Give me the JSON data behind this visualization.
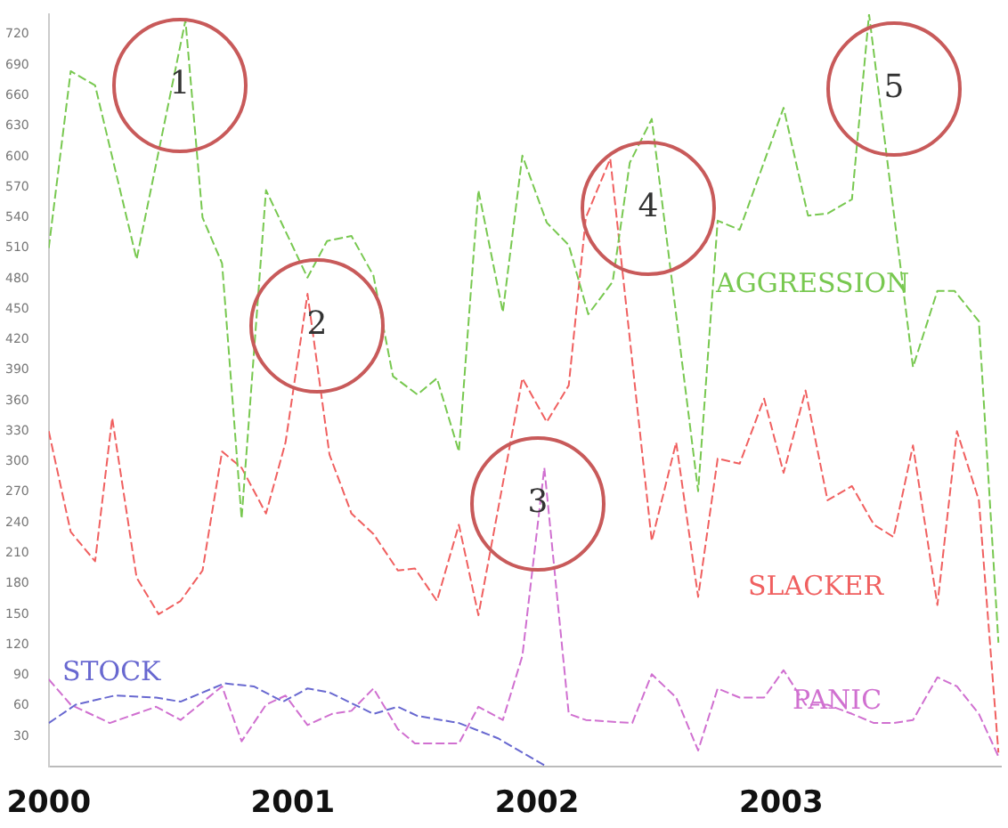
{
  "chart_data": {
    "type": "line",
    "xlim": [
      2000,
      2003.9
    ],
    "xticks": [
      2000,
      2001,
      2002,
      2003
    ],
    "ylim": [
      0,
      740
    ],
    "yticks": [
      30,
      60,
      90,
      120,
      150,
      180,
      210,
      240,
      270,
      300,
      330,
      360,
      390,
      420,
      450,
      480,
      510,
      540,
      570,
      600,
      630,
      660,
      690,
      720
    ],
    "grid": false,
    "legend": false,
    "marker": "none",
    "line_style": "dashed",
    "series": [
      {
        "name": "AGGRESSION",
        "color": "#78c850",
        "x": [
          2000,
          2000.09,
          2000.19,
          2000.36,
          2000.56,
          2000.63,
          2000.71,
          2000.79,
          2000.89,
          2001.06,
          2001.14,
          2001.24,
          2001.33,
          2001.41,
          2001.51,
          2001.59,
          2001.68,
          2001.76,
          2001.86,
          2001.94,
          2002.04,
          2002.13,
          2002.21,
          2002.31,
          2002.38,
          2002.47,
          2002.66,
          2002.74,
          2002.83,
          2003.01,
          2003.11,
          2003.19,
          2003.29,
          2003.36,
          2003.54,
          2003.64,
          2003.71,
          2003.81,
          2003.89
        ],
        "values": [
          510,
          684,
          670,
          499,
          734,
          540,
          495,
          244,
          567,
          481,
          517,
          522,
          483,
          384,
          366,
          382,
          310,
          567,
          447,
          601,
          535,
          513,
          445,
          477,
          594,
          637,
          271,
          537,
          528,
          648,
          542,
          544,
          558,
          740,
          393,
          468,
          468,
          438,
          122
        ]
      },
      {
        "name": "SLACKER",
        "color": "#f06060",
        "x": [
          2000,
          2000.09,
          2000.19,
          2000.26,
          2000.36,
          2000.45,
          2000.54,
          2000.63,
          2000.71,
          2000.79,
          2000.89,
          2000.97,
          2001.06,
          2001.15,
          2001.24,
          2001.33,
          2001.43,
          2001.5,
          2001.59,
          2001.68,
          2001.76,
          2001.94,
          2002.04,
          2002.13,
          2002.2,
          2002.3,
          2002.47,
          2002.57,
          2002.66,
          2002.74,
          2002.83,
          2002.93,
          2003.01,
          2003.1,
          2003.19,
          2003.29,
          2003.38,
          2003.46,
          2003.54,
          2003.64,
          2003.72,
          2003.81,
          2003.89
        ],
        "values": [
          330,
          231,
          202,
          343,
          186,
          150,
          163,
          193,
          310,
          294,
          249,
          319,
          465,
          307,
          249,
          229,
          193,
          195,
          163,
          238,
          149,
          382,
          339,
          375,
          540,
          598,
          222,
          319,
          167,
          303,
          298,
          362,
          289,
          370,
          262,
          276,
          238,
          226,
          316,
          159,
          330,
          262,
          14
        ]
      },
      {
        "name": "STOCK",
        "color": "#6868d0",
        "x": [
          2000,
          2000.11,
          2000.27,
          2000.44,
          2000.54,
          2000.72,
          2000.84,
          2000.96,
          2001.06,
          2001.15,
          2001.33,
          2001.43,
          2001.51,
          2001.68,
          2001.84,
          2002.04
        ],
        "values": [
          43,
          61,
          70,
          68,
          64,
          82,
          79,
          64,
          77,
          73,
          52,
          59,
          50,
          43,
          28,
          0
        ]
      },
      {
        "name": "PANIC",
        "color": "#d070d0",
        "x": [
          2000,
          2000.09,
          2000.25,
          2000.44,
          2000.54,
          2000.71,
          2000.79,
          2000.89,
          2000.97,
          2001.06,
          2001.16,
          2001.24,
          2001.33,
          2001.43,
          2001.5,
          2001.68,
          2001.76,
          2001.86,
          2001.94,
          2002.03,
          2002.13,
          2002.2,
          2002.39,
          2002.47,
          2002.57,
          2002.66,
          2002.74,
          2002.83,
          2002.93,
          2003.01,
          2003.1,
          2003.19,
          2003.29,
          2003.38,
          2003.46,
          2003.54,
          2003.64,
          2003.72,
          2003.81,
          2003.89
        ],
        "values": [
          86,
          61,
          43,
          59,
          46,
          79,
          25,
          61,
          70,
          41,
          52,
          55,
          77,
          37,
          23,
          23,
          59,
          46,
          109,
          294,
          52,
          46,
          43,
          91,
          68,
          16,
          77,
          68,
          68,
          95,
          61,
          61,
          52,
          43,
          43,
          46,
          88,
          79,
          52,
          10
        ]
      }
    ],
    "annotations": [
      "1",
      "2",
      "3",
      "4",
      "5"
    ]
  }
}
